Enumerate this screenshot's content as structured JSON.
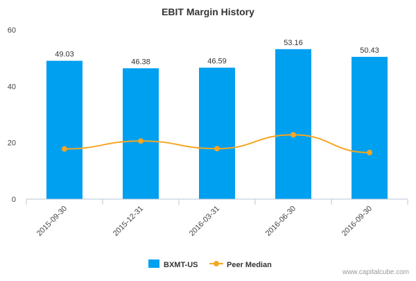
{
  "chart_data": {
    "type": "bar",
    "title": "EBIT Margin History",
    "categories": [
      "2015-09-30",
      "2015-12-31",
      "2016-03-31",
      "2016-06-30",
      "2016-09-30"
    ],
    "series": [
      {
        "name": "BXMT-US",
        "type": "bar",
        "color": "#00a0f0",
        "values": [
          49.03,
          46.38,
          46.59,
          53.16,
          50.43
        ],
        "labels": [
          "49.03",
          "46.38",
          "46.59",
          "53.16",
          "50.43"
        ]
      },
      {
        "name": "Peer Median",
        "type": "line",
        "color": "#f5a623",
        "values": [
          17.8,
          20.6,
          17.9,
          22.8,
          16.5
        ]
      }
    ],
    "ylim": [
      0,
      60
    ],
    "yticks": [
      0,
      20,
      40,
      60
    ],
    "ytick_labels": [
      "0",
      "20",
      "40",
      "60"
    ],
    "grid": false,
    "legend_position": "bottom"
  },
  "watermark": "www.capitalcube.com"
}
